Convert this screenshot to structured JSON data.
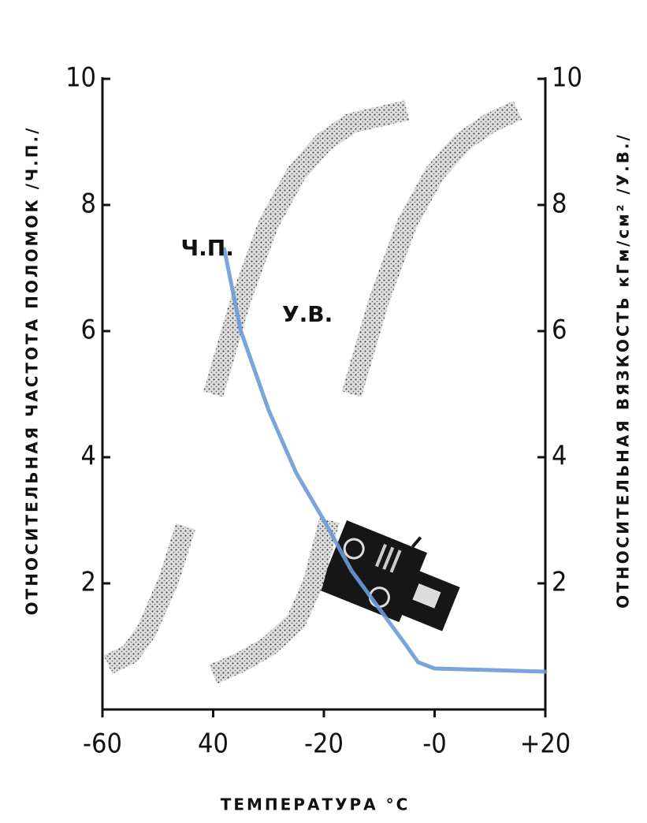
{
  "chart_data": {
    "type": "line",
    "y_label": "ОТНОСИТЕЛЬНАЯ ЧАСТОТА ПОЛОМОК /Ч.П./",
    "y2_label": "ОТНОСИТЕЛЬНАЯ ВЯЗКОСТЬ кГм/см² /У.В./",
    "x_label": "ТЕМПЕРАТУРА °C",
    "xlim": [
      -60,
      20
    ],
    "xticks": [
      -60,
      {
        "value": -40,
        "label": "40"
      },
      -20,
      {
        "value": 0,
        "label": "-0"
      },
      {
        "value": 20,
        "label": "+20"
      }
    ],
    "ylim": [
      0,
      10
    ],
    "yticks": [
      2,
      4,
      6,
      8,
      10
    ],
    "y2lim": [
      0,
      10
    ],
    "y2ticks": [
      2,
      4,
      6,
      8,
      10
    ],
    "series": [
      {
        "style": "band",
        "color": "#222222",
        "x": [
          -59,
          -55,
          -52,
          -48,
          -45,
          -43,
          -40,
          -35,
          -30,
          -25,
          -20,
          -15,
          -5
        ],
        "values": [
          0.71,
          0.88,
          1.25,
          2.06,
          2.9,
          null,
          5.0,
          6.5,
          7.7,
          8.5,
          9.0,
          9.3,
          9.5
        ]
      },
      {
        "name": "У.В.",
        "style": "band",
        "color": "#222222",
        "axis": "y2",
        "x": [
          -40,
          -35,
          -30,
          -25,
          -22,
          -19,
          -17,
          -15,
          -10,
          -5,
          0,
          5,
          10,
          15
        ],
        "values": [
          0.56,
          0.75,
          1.0,
          1.4,
          2.0,
          3.0,
          null,
          5.0,
          6.5,
          7.7,
          8.5,
          9.0,
          9.3,
          9.5
        ]
      },
      {
        "name": "Ч.П.",
        "style": "line",
        "color": "#6a9bd8",
        "x": [
          -38,
          -35,
          -30,
          -25,
          -20,
          -15,
          -10,
          -5,
          -3,
          0,
          20
        ],
        "values": [
          7.3,
          6.0,
          4.75,
          3.75,
          3.0,
          2.2,
          1.6,
          1.0,
          0.75,
          0.65,
          0.6
        ]
      }
    ]
  }
}
